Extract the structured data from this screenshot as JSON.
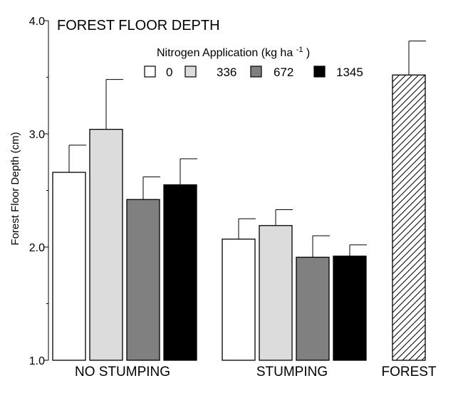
{
  "chart_data": {
    "type": "bar",
    "title": "FOREST FLOOR DEPTH",
    "ylabel": "Forest Floor Depth (cm)",
    "xlabel": "",
    "ylim": [
      1.0,
      4.0
    ],
    "yticks": [
      {
        "value": 1.0,
        "label": "1.0"
      },
      {
        "value": 2.0,
        "label": "2.0"
      },
      {
        "value": 3.0,
        "label": "3.0"
      },
      {
        "value": 4.0,
        "label": "4.0"
      }
    ],
    "legend": {
      "title": "Nitrogen Application  (kg  ha",
      "title_sup": "-1",
      "title_close": ")",
      "placement": "top-center",
      "entries": [
        {
          "label": "0",
          "color": "#ffffff"
        },
        {
          "label": "336",
          "color": "#dcdcdc"
        },
        {
          "label": "672",
          "color": "#808080"
        },
        {
          "label": "1345",
          "color": "#000000"
        }
      ]
    },
    "categories": [
      "NO STUMPING",
      "STUMPING",
      "FOREST"
    ],
    "series": [
      {
        "name": "0",
        "color": "#ffffff",
        "values": [
          2.66,
          2.07,
          null
        ],
        "errors": [
          0.24,
          0.18,
          null
        ]
      },
      {
        "name": "336",
        "color": "#dcdcdc",
        "values": [
          3.04,
          2.19,
          null
        ],
        "errors": [
          0.44,
          0.14,
          null
        ]
      },
      {
        "name": "672",
        "color": "#808080",
        "values": [
          2.42,
          1.91,
          null
        ],
        "errors": [
          0.2,
          0.19,
          null
        ]
      },
      {
        "name": "1345",
        "color": "#000000",
        "values": [
          2.55,
          1.92,
          null
        ],
        "errors": [
          0.23,
          0.1,
          null
        ]
      }
    ],
    "reference": {
      "category": "FOREST",
      "value": 3.52,
      "error": 0.3,
      "fill": "hatched"
    }
  }
}
